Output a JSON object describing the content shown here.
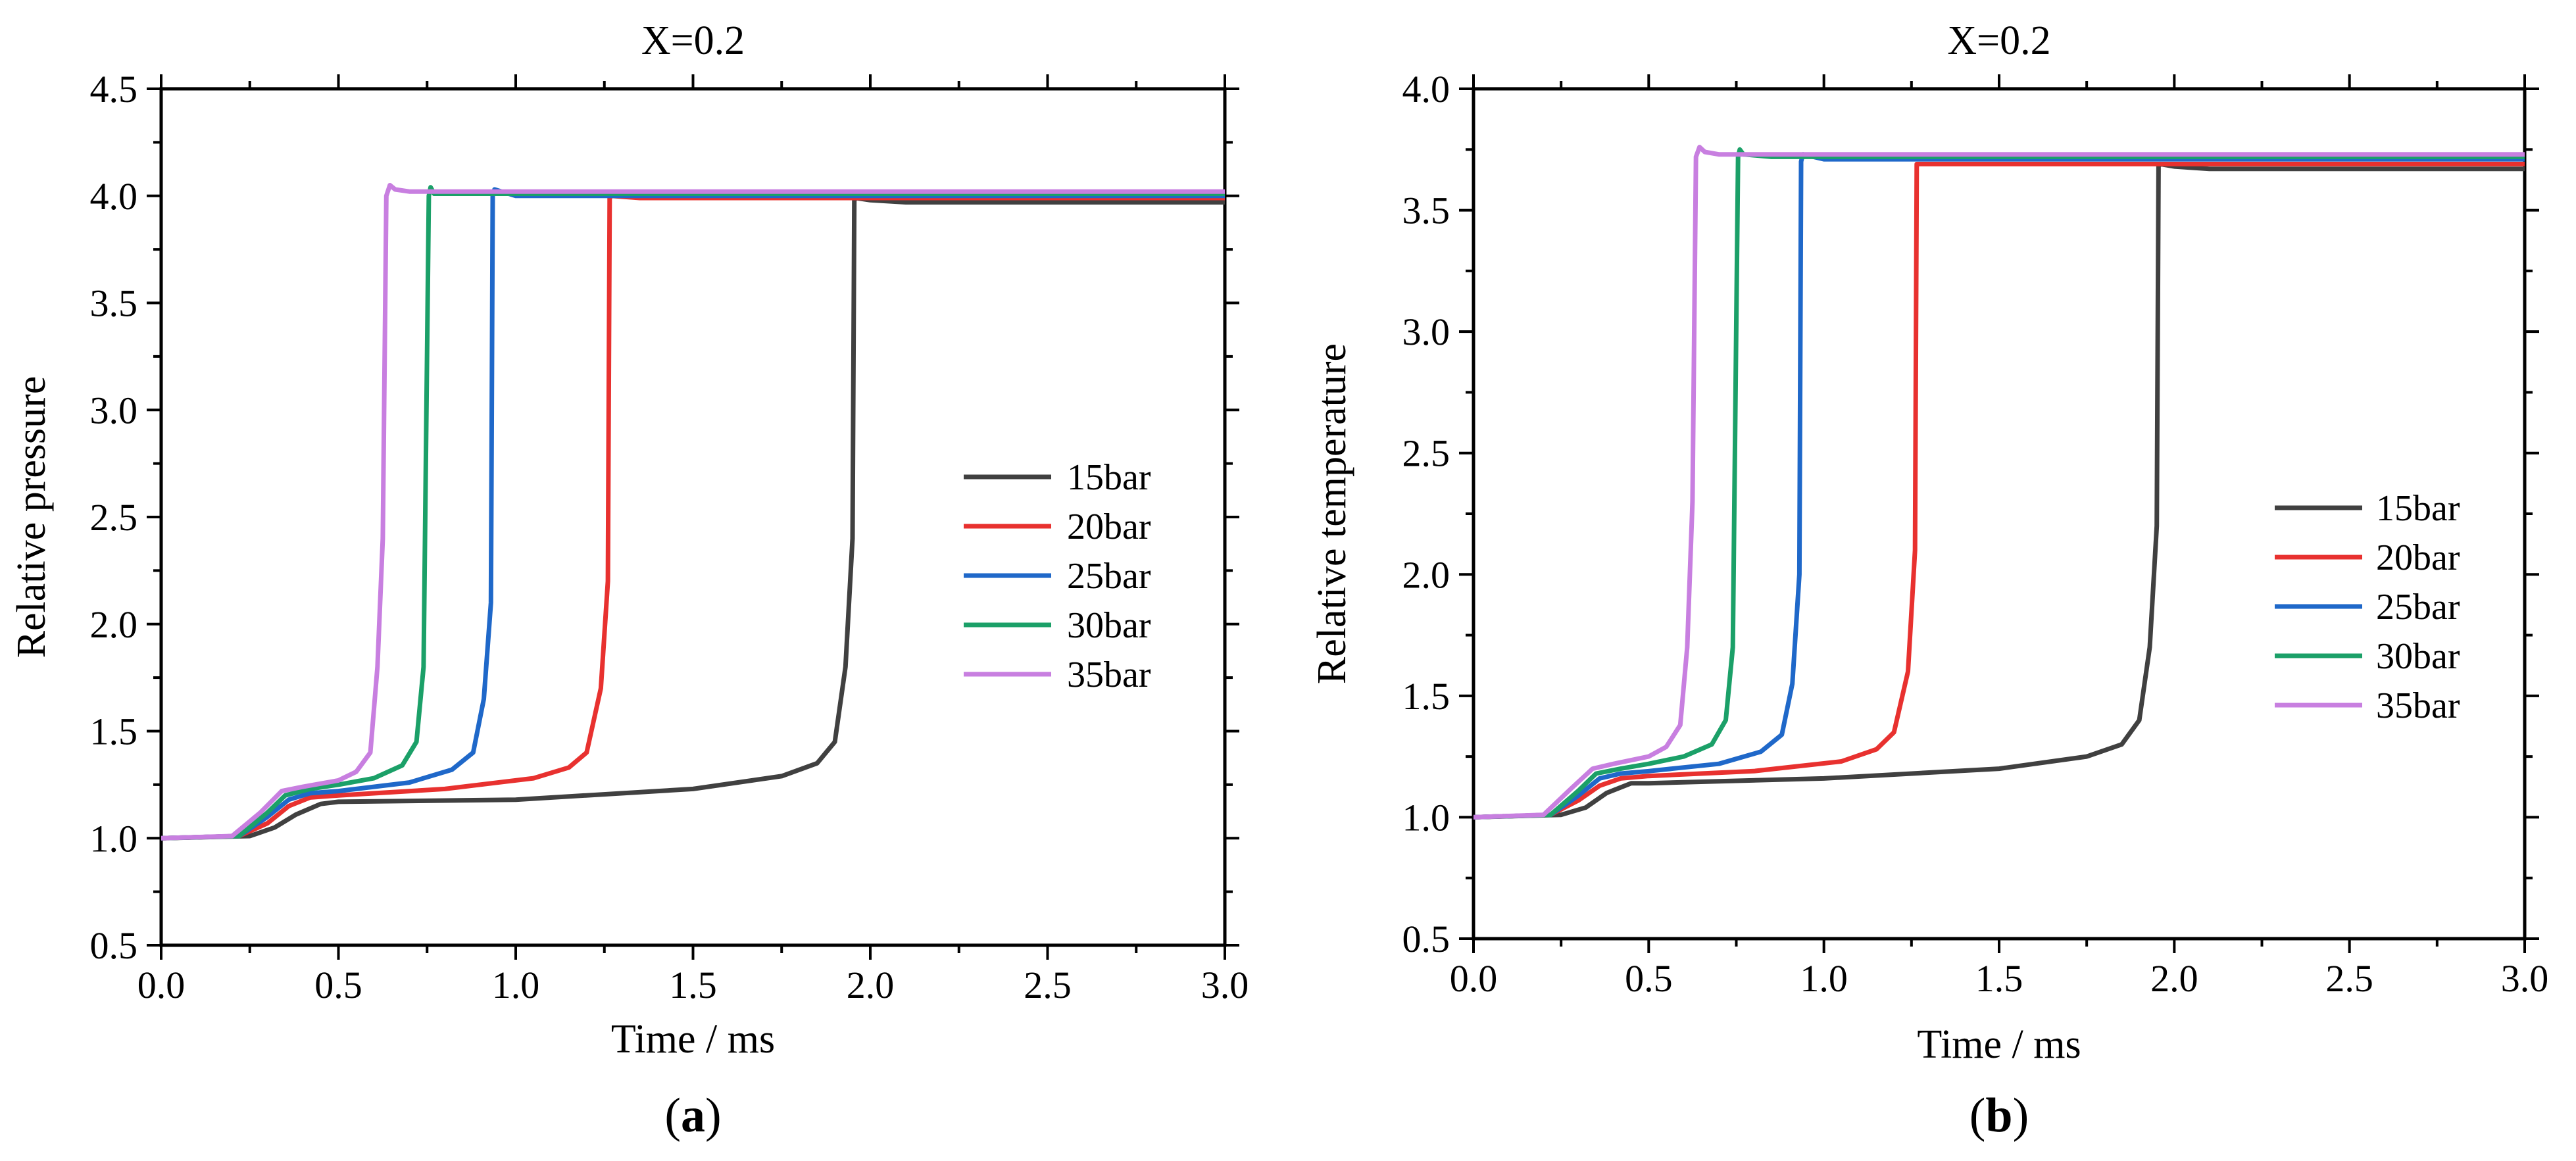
{
  "chart_data": [
    {
      "type": "line",
      "title": "X=0.2",
      "xlabel": "Time / ms",
      "ylabel": "Relative pressure",
      "xlim": [
        0.0,
        3.0
      ],
      "ylim": [
        0.5,
        4.5
      ],
      "xticks": [
        "0.0",
        "0.5",
        "1.0",
        "1.5",
        "2.0",
        "2.5",
        "3.0"
      ],
      "yticks": [
        "0.5",
        "1.0",
        "1.5",
        "2.0",
        "2.5",
        "3.0",
        "3.5",
        "4.0",
        "4.5"
      ],
      "legend_position": "center-right",
      "panel_label": {
        "open": "(",
        "letter": "a",
        "close": ")"
      },
      "series": [
        {
          "name": "15bar",
          "color": "#404040",
          "x": [
            0.0,
            0.25,
            0.32,
            0.38,
            0.45,
            0.5,
            1.0,
            1.5,
            1.75,
            1.85,
            1.9,
            1.93,
            1.95,
            1.955,
            1.96,
            2.0,
            2.1,
            3.0
          ],
          "y": [
            1.0,
            1.01,
            1.05,
            1.11,
            1.16,
            1.17,
            1.18,
            1.23,
            1.29,
            1.35,
            1.45,
            1.8,
            2.4,
            3.98,
            3.99,
            3.98,
            3.97,
            3.97
          ]
        },
        {
          "name": "20bar",
          "color": "#e8312f",
          "x": [
            0.0,
            0.22,
            0.3,
            0.36,
            0.42,
            0.5,
            0.8,
            1.05,
            1.15,
            1.2,
            1.24,
            1.26,
            1.265,
            1.27,
            1.35,
            3.0
          ],
          "y": [
            1.0,
            1.01,
            1.07,
            1.15,
            1.19,
            1.2,
            1.23,
            1.28,
            1.33,
            1.4,
            1.7,
            2.2,
            3.99,
            4.0,
            3.99,
            3.99
          ]
        },
        {
          "name": "25bar",
          "color": "#1f68c9",
          "x": [
            0.0,
            0.22,
            0.3,
            0.36,
            0.42,
            0.5,
            0.7,
            0.82,
            0.88,
            0.91,
            0.93,
            0.935,
            0.94,
            1.0,
            3.0
          ],
          "y": [
            1.0,
            1.01,
            1.1,
            1.18,
            1.21,
            1.22,
            1.26,
            1.32,
            1.4,
            1.65,
            2.1,
            4.0,
            4.03,
            4.0,
            4.0
          ]
        },
        {
          "name": "30bar",
          "color": "#1ba068",
          "x": [
            0.0,
            0.22,
            0.3,
            0.35,
            0.42,
            0.5,
            0.6,
            0.68,
            0.72,
            0.74,
            0.755,
            0.76,
            0.77,
            0.85,
            3.0
          ],
          "y": [
            1.0,
            1.01,
            1.12,
            1.2,
            1.23,
            1.25,
            1.28,
            1.34,
            1.45,
            1.8,
            4.0,
            4.04,
            4.01,
            4.01,
            4.01
          ]
        },
        {
          "name": "35bar",
          "color": "#c87fe0",
          "x": [
            0.0,
            0.2,
            0.28,
            0.34,
            0.4,
            0.5,
            0.55,
            0.59,
            0.61,
            0.625,
            0.635,
            0.645,
            0.66,
            0.7,
            3.0
          ],
          "y": [
            1.0,
            1.01,
            1.12,
            1.22,
            1.24,
            1.27,
            1.31,
            1.4,
            1.8,
            2.4,
            4.0,
            4.05,
            4.03,
            4.02,
            4.02
          ]
        }
      ]
    },
    {
      "type": "line",
      "title": "X=0.2",
      "xlabel": "Time / ms",
      "ylabel": "Relative temperature",
      "xlim": [
        0.0,
        3.0
      ],
      "ylim": [
        0.5,
        4.0
      ],
      "xticks": [
        "0.0",
        "0.5",
        "1.0",
        "1.5",
        "2.0",
        "2.5",
        "3.0"
      ],
      "yticks": [
        "0.5",
        "1.0",
        "1.5",
        "2.0",
        "2.5",
        "3.0",
        "3.5",
        "4.0"
      ],
      "legend_position": "center-right",
      "panel_label": {
        "open": "(",
        "letter": "b",
        "close": ")"
      },
      "series": [
        {
          "name": "15bar",
          "color": "#404040",
          "x": [
            0.0,
            0.25,
            0.32,
            0.38,
            0.45,
            0.5,
            1.0,
            1.5,
            1.75,
            1.85,
            1.9,
            1.93,
            1.95,
            1.955,
            1.96,
            2.0,
            2.1,
            3.0
          ],
          "y": [
            1.0,
            1.01,
            1.04,
            1.1,
            1.14,
            1.14,
            1.16,
            1.2,
            1.25,
            1.3,
            1.4,
            1.7,
            2.2,
            3.68,
            3.69,
            3.68,
            3.67,
            3.67
          ]
        },
        {
          "name": "20bar",
          "color": "#e8312f",
          "x": [
            0.0,
            0.22,
            0.3,
            0.36,
            0.42,
            0.5,
            0.8,
            1.05,
            1.15,
            1.2,
            1.24,
            1.26,
            1.265,
            1.27,
            1.35,
            3.0
          ],
          "y": [
            1.0,
            1.01,
            1.07,
            1.13,
            1.16,
            1.17,
            1.19,
            1.23,
            1.28,
            1.35,
            1.6,
            2.1,
            3.69,
            3.69,
            3.69,
            3.69
          ]
        },
        {
          "name": "25bar",
          "color": "#1f68c9",
          "x": [
            0.0,
            0.22,
            0.3,
            0.36,
            0.42,
            0.5,
            0.7,
            0.82,
            0.88,
            0.91,
            0.93,
            0.935,
            0.94,
            1.0,
            3.0
          ],
          "y": [
            1.0,
            1.01,
            1.09,
            1.16,
            1.18,
            1.19,
            1.22,
            1.27,
            1.34,
            1.55,
            2.0,
            3.7,
            3.73,
            3.71,
            3.71
          ]
        },
        {
          "name": "30bar",
          "color": "#1ba068",
          "x": [
            0.0,
            0.22,
            0.3,
            0.35,
            0.42,
            0.5,
            0.6,
            0.68,
            0.72,
            0.74,
            0.755,
            0.76,
            0.77,
            0.85,
            3.0
          ],
          "y": [
            1.0,
            1.01,
            1.11,
            1.18,
            1.2,
            1.22,
            1.25,
            1.3,
            1.4,
            1.7,
            3.72,
            3.75,
            3.73,
            3.72,
            3.72
          ]
        },
        {
          "name": "35bar",
          "color": "#c87fe0",
          "x": [
            0.0,
            0.2,
            0.28,
            0.34,
            0.4,
            0.5,
            0.55,
            0.59,
            0.61,
            0.625,
            0.635,
            0.645,
            0.66,
            0.7,
            3.0
          ],
          "y": [
            1.0,
            1.01,
            1.12,
            1.2,
            1.22,
            1.25,
            1.29,
            1.38,
            1.7,
            2.3,
            3.72,
            3.76,
            3.74,
            3.73,
            3.73
          ]
        }
      ]
    }
  ]
}
